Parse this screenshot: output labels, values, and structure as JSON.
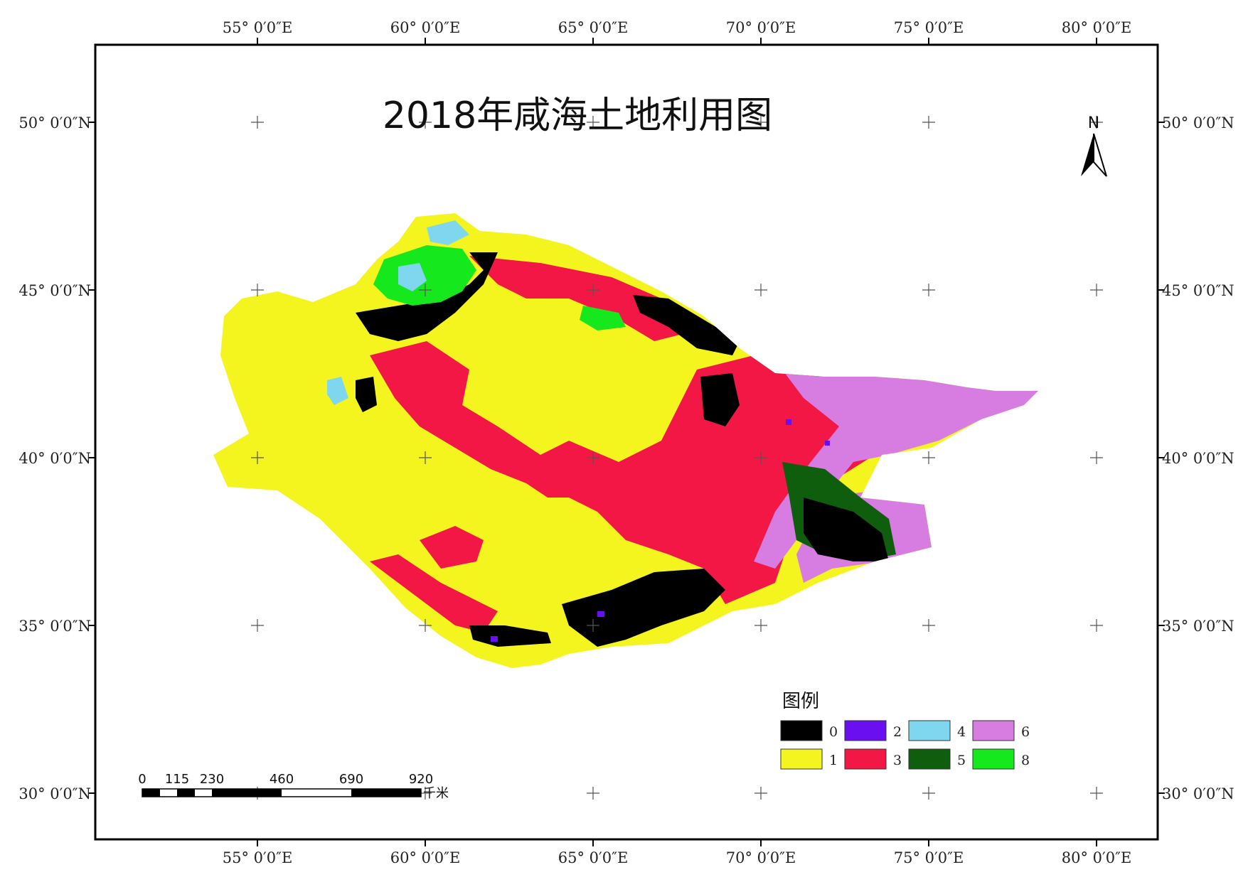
{
  "title": "2018年咸海土地利用图",
  "north_label": "N",
  "graticule": {
    "longitudes": [
      "55° 0′0″E",
      "60° 0′0″E",
      "65° 0′0″E",
      "70° 0′0″E",
      "75° 0′0″E",
      "80° 0′0″E"
    ],
    "latitudes": [
      "50° 0′0″N",
      "45° 0′0″N",
      "40° 0′0″N",
      "35° 0′0″N",
      "30° 0′0″N"
    ]
  },
  "legend": {
    "title": "图例",
    "items": [
      {
        "label": "0",
        "color": "#000000"
      },
      {
        "label": "2",
        "color": "#6a0ff0"
      },
      {
        "label": "4",
        "color": "#7fd6ef"
      },
      {
        "label": "6",
        "color": "#d77ce0"
      },
      {
        "label": "1",
        "color": "#f4f41e"
      },
      {
        "label": "3",
        "color": "#f21745"
      },
      {
        "label": "5",
        "color": "#0e5e0e"
      },
      {
        "label": "8",
        "color": "#15e81c"
      }
    ]
  },
  "scale_bar": {
    "labels": [
      "0",
      "115",
      "230",
      "460",
      "690",
      "920"
    ],
    "unit": "千米"
  },
  "colors": {
    "class_0": "#000000",
    "class_1": "#f4f41e",
    "class_2": "#6a0ff0",
    "class_3": "#f21745",
    "class_4": "#7fd6ef",
    "class_5": "#0e5e0e",
    "class_6": "#d77ce0",
    "class_8": "#15e81c"
  }
}
